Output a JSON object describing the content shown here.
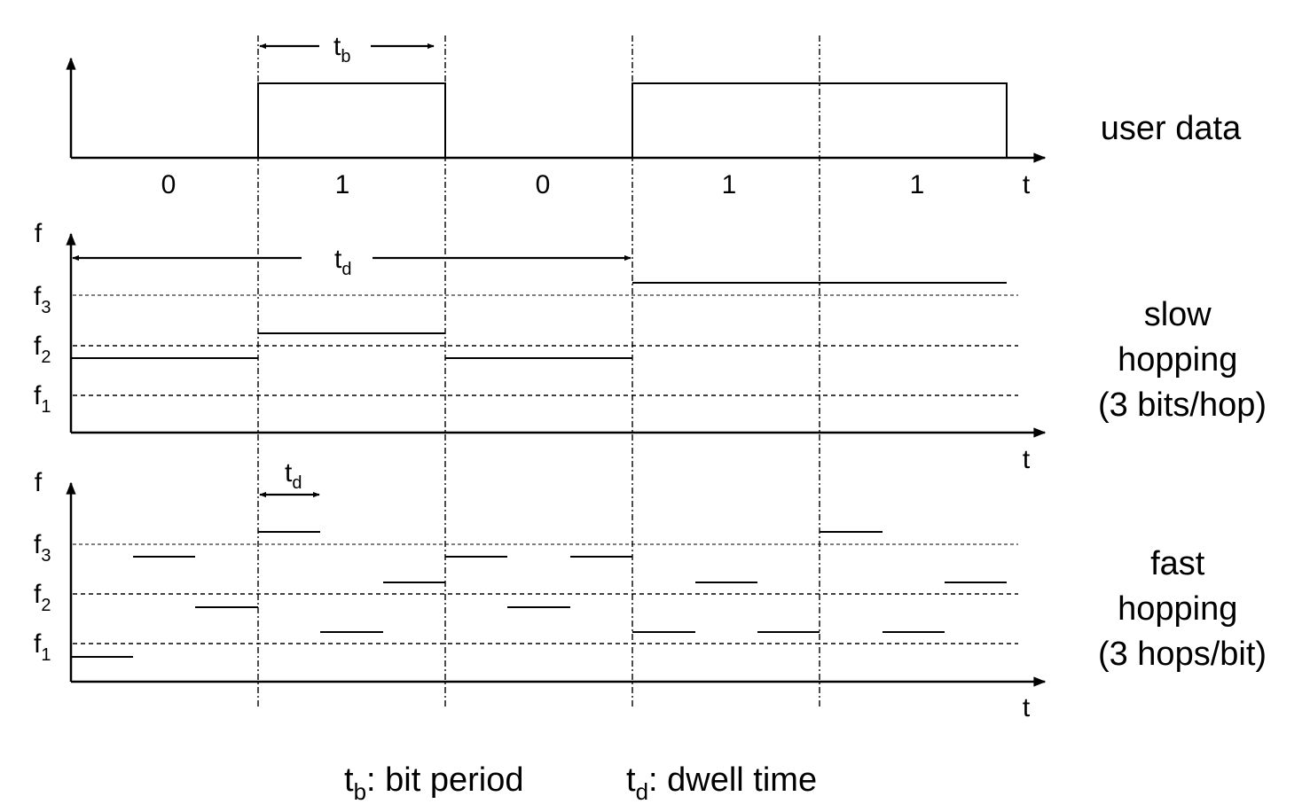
{
  "user_data": {
    "label": "user data",
    "bits": [
      "0",
      "1",
      "0",
      "1",
      "1"
    ],
    "tb_main": "t",
    "tb_sub": "b",
    "t_axis": "t"
  },
  "slow": {
    "label_lines": [
      "slow",
      "hopping",
      "(3 bits/hop)"
    ],
    "f_axis": "f",
    "t_axis": "t",
    "td_main": "t",
    "td_sub": "d",
    "freqs": [
      {
        "main": "f",
        "sub": "3"
      },
      {
        "main": "f",
        "sub": "2"
      },
      {
        "main": "f",
        "sub": "1"
      }
    ]
  },
  "fast": {
    "label_lines": [
      "fast",
      "hopping",
      "(3 hops/bit)"
    ],
    "f_axis": "f",
    "t_axis": "t",
    "td_main": "t",
    "td_sub": "d",
    "freqs": [
      {
        "main": "f",
        "sub": "3"
      },
      {
        "main": "f",
        "sub": "2"
      },
      {
        "main": "f",
        "sub": "1"
      }
    ]
  },
  "legend": {
    "tb": {
      "main": "t",
      "sub": "b",
      "text": ": bit period"
    },
    "td": {
      "main": "t",
      "sub": "d",
      "text": ": dwell time"
    }
  }
}
